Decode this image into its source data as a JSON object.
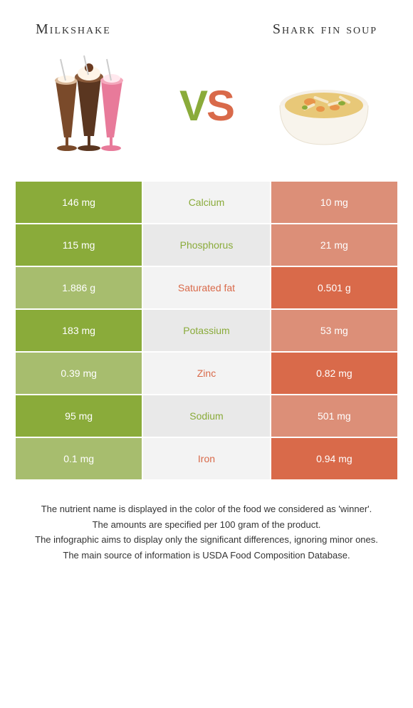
{
  "header": {
    "left_title": "Milkshake",
    "right_title": "Shark fin soup",
    "vs_v": "V",
    "vs_s": "S"
  },
  "colors": {
    "left_food": "#8aab3a",
    "right_food": "#d96a4a",
    "mid_light": "#f3f3f3",
    "mid_dark": "#e9e9e9"
  },
  "rows": [
    {
      "left": "146 mg",
      "label": "Calcium",
      "right": "10 mg",
      "winner": "left",
      "left_bg": "#8aab3a",
      "mid_bg": "#f3f3f3",
      "right_bg": "#dc8f78",
      "label_color": "#8aab3a"
    },
    {
      "left": "115 mg",
      "label": "Phosphorus",
      "right": "21 mg",
      "winner": "left",
      "left_bg": "#8aab3a",
      "mid_bg": "#e9e9e9",
      "right_bg": "#dc8f78",
      "label_color": "#8aab3a"
    },
    {
      "left": "1.886 g",
      "label": "Saturated fat",
      "right": "0.501 g",
      "winner": "right",
      "left_bg": "#a7bd6e",
      "mid_bg": "#f3f3f3",
      "right_bg": "#d96a4a",
      "label_color": "#d96a4a"
    },
    {
      "left": "183 mg",
      "label": "Potassium",
      "right": "53 mg",
      "winner": "left",
      "left_bg": "#8aab3a",
      "mid_bg": "#e9e9e9",
      "right_bg": "#dc8f78",
      "label_color": "#8aab3a"
    },
    {
      "left": "0.39 mg",
      "label": "Zinc",
      "right": "0.82 mg",
      "winner": "right",
      "left_bg": "#a7bd6e",
      "mid_bg": "#f3f3f3",
      "right_bg": "#d96a4a",
      "label_color": "#d96a4a"
    },
    {
      "left": "95 mg",
      "label": "Sodium",
      "right": "501 mg",
      "winner": "left",
      "left_bg": "#8aab3a",
      "mid_bg": "#e9e9e9",
      "right_bg": "#dc8f78",
      "label_color": "#8aab3a"
    },
    {
      "left": "0.1 mg",
      "label": "Iron",
      "right": "0.94 mg",
      "winner": "right",
      "left_bg": "#a7bd6e",
      "mid_bg": "#f3f3f3",
      "right_bg": "#d96a4a",
      "label_color": "#d96a4a"
    }
  ],
  "footer": {
    "line1": "The nutrient name is displayed in the color of the food we considered as 'winner'.",
    "line2": "The amounts are specified per 100 gram of the product.",
    "line3": "The infographic aims to display only the significant differences, ignoring minor ones.",
    "line4": "The main source of information is USDA Food Composition Database."
  }
}
